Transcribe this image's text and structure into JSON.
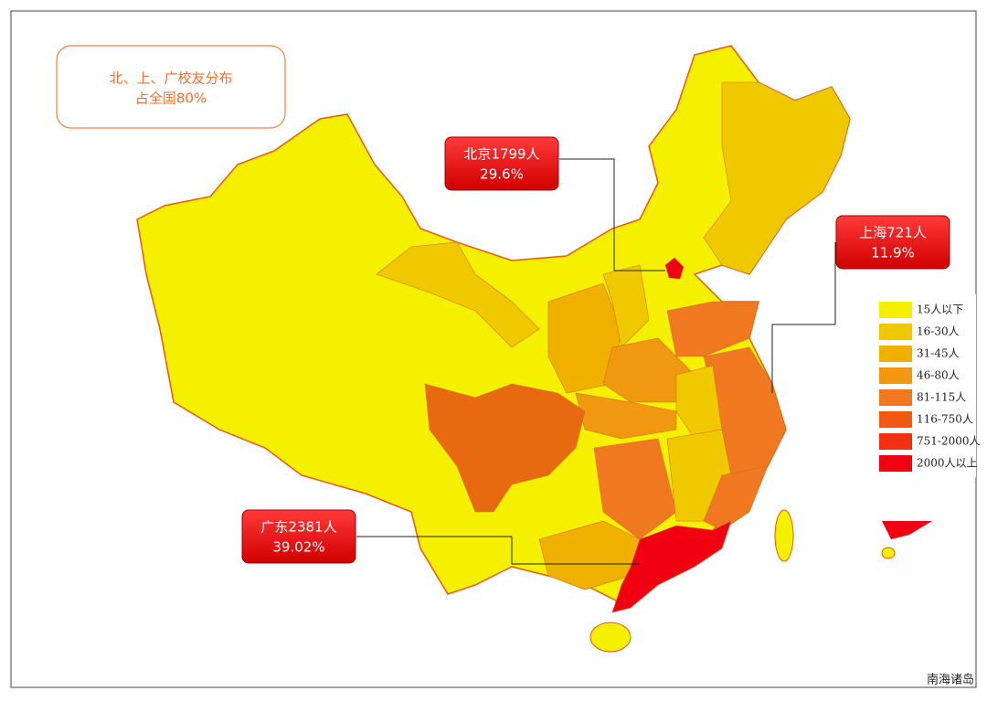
{
  "note": {
    "lines": [
      "北、上、广校友分布",
      "占全国80%"
    ]
  },
  "callouts": [
    {
      "label": "北京1799人",
      "share": "29.6%"
    },
    {
      "label": "上海721人",
      "share": "11.9%"
    },
    {
      "label": "广东2381人",
      "share": "39.02%"
    }
  ],
  "legend": [
    {
      "label": "15人以下",
      "color": "#f5f000"
    },
    {
      "label": "16-30人",
      "color": "#f0c800"
    },
    {
      "label": "31-45人",
      "color": "#f0b000"
    },
    {
      "label": "46-80人",
      "color": "#f09810"
    },
    {
      "label": "81-115人",
      "color": "#f07820"
    },
    {
      "label": "116-750人",
      "color": "#f05a10"
    },
    {
      "label": "751-2000人",
      "color": "#f03010"
    },
    {
      "label": "2000人以上",
      "color": "#f00010"
    }
  ],
  "inset_label": "南海诸岛"
}
